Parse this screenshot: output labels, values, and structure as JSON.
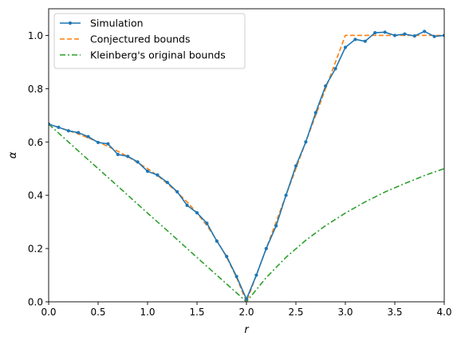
{
  "chart_data": {
    "type": "line",
    "xlabel": "r",
    "ylabel": "α",
    "xlim": [
      0,
      4
    ],
    "ylim": [
      0,
      1.1
    ],
    "xticks": [
      0.0,
      0.5,
      1.0,
      1.5,
      2.0,
      2.5,
      3.0,
      3.5,
      4.0
    ],
    "xtick_labels": [
      "0.0",
      "0.5",
      "1.0",
      "1.5",
      "2.0",
      "2.5",
      "3.0",
      "3.5",
      "4.0"
    ],
    "yticks": [
      0.0,
      0.2,
      0.4,
      0.6,
      0.8,
      1.0
    ],
    "ytick_labels": [
      "0.0",
      "0.2",
      "0.4",
      "0.6",
      "0.8",
      "1.0"
    ],
    "grid": false,
    "legend_position": "top-left",
    "series": [
      {
        "name": "Simulation",
        "color": "#1f77b4",
        "style": "solid-markers",
        "x": [
          0.0,
          0.1,
          0.2,
          0.3,
          0.4,
          0.5,
          0.6,
          0.7,
          0.8,
          0.9,
          1.0,
          1.1,
          1.2,
          1.3,
          1.4,
          1.5,
          1.6,
          1.7,
          1.8,
          1.9,
          2.0,
          2.1,
          2.2,
          2.3,
          2.4,
          2.5,
          2.6,
          2.7,
          2.8,
          2.9,
          3.0,
          3.1,
          3.2,
          3.3,
          3.4,
          3.5,
          3.6,
          3.7,
          3.8,
          3.9,
          4.0
        ],
        "y": [
          0.667,
          0.655,
          0.642,
          0.635,
          0.62,
          0.598,
          0.593,
          0.553,
          0.546,
          0.525,
          0.49,
          0.476,
          0.448,
          0.413,
          0.362,
          0.334,
          0.295,
          0.228,
          0.17,
          0.095,
          0.01,
          0.1,
          0.2,
          0.285,
          0.4,
          0.51,
          0.6,
          0.71,
          0.81,
          0.875,
          0.955,
          0.985,
          0.978,
          1.01,
          1.012,
          1.0,
          1.005,
          0.998,
          1.015,
          0.996,
          1.0
        ]
      },
      {
        "name": "Conjectured bounds",
        "color": "#ff7f0e",
        "style": "dashed",
        "x": [
          0.0,
          0.1,
          0.2,
          0.3,
          0.4,
          0.5,
          0.6,
          0.7,
          0.8,
          0.9,
          1.0,
          1.1,
          1.2,
          1.3,
          1.4,
          1.5,
          1.6,
          1.7,
          1.8,
          1.9,
          2.0,
          2.1,
          2.2,
          2.3,
          2.4,
          2.5,
          2.6,
          2.7,
          2.8,
          2.9,
          3.0,
          3.5,
          4.0
        ],
        "y": [
          0.667,
          0.655,
          0.643,
          0.63,
          0.615,
          0.6,
          0.583,
          0.565,
          0.545,
          0.522,
          0.5,
          0.474,
          0.444,
          0.411,
          0.375,
          0.333,
          0.286,
          0.231,
          0.167,
          0.091,
          0.0,
          0.1,
          0.2,
          0.3,
          0.4,
          0.5,
          0.6,
          0.7,
          0.8,
          0.9,
          1.0,
          1.0,
          1.0
        ]
      },
      {
        "name": "Kleinberg's original bounds",
        "color": "#2ca02c",
        "style": "dashdot",
        "x": [
          0.0,
          0.2,
          0.4,
          0.6,
          0.8,
          1.0,
          1.2,
          1.4,
          1.6,
          1.8,
          2.0,
          2.2,
          2.4,
          2.6,
          2.8,
          3.0,
          3.2,
          3.4,
          3.6,
          3.8,
          4.0
        ],
        "y": [
          0.667,
          0.6,
          0.533,
          0.467,
          0.4,
          0.333,
          0.267,
          0.2,
          0.133,
          0.067,
          0.0,
          0.091,
          0.167,
          0.231,
          0.286,
          0.333,
          0.375,
          0.412,
          0.444,
          0.474,
          0.5
        ]
      }
    ]
  }
}
